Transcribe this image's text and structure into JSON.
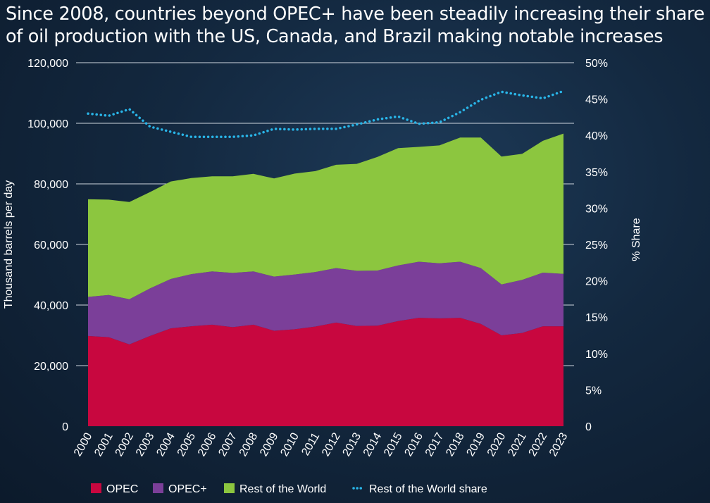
{
  "chart_data": {
    "type": "area",
    "title": "Since 2008, countries beyond OPEC+ have been steadily increasing their share of oil production with the US, Canada, and Brazil making notable increases",
    "ylabel": "Thousand barrels per day",
    "y2label": "% Share",
    "stacked": true,
    "grid": true,
    "legend_position": "bottom",
    "ylim": [
      0,
      120000
    ],
    "y2lim": [
      0,
      50
    ],
    "yticks": [
      "0",
      "20,000",
      "40,000",
      "60,000",
      "80,000",
      "100,000",
      "120,000"
    ],
    "y2ticks": [
      "0",
      "5%",
      "10%",
      "15%",
      "20%",
      "25%",
      "30%",
      "35%",
      "40%",
      "45%",
      "50%"
    ],
    "categories": [
      "2000",
      "2001",
      "2002",
      "2003",
      "2004",
      "2005",
      "2006",
      "2007",
      "2008",
      "2009",
      "2010",
      "2011",
      "2012",
      "2013",
      "2014",
      "2015",
      "2016",
      "2017",
      "2018",
      "2019",
      "2020",
      "2021",
      "2022",
      "2023"
    ],
    "series": [
      {
        "name": "OPEC",
        "color": "#c8073f",
        "values": [
          29800,
          29400,
          27000,
          29800,
          32300,
          33000,
          33500,
          32700,
          33500,
          31500,
          32000,
          32900,
          34200,
          33100,
          33200,
          34700,
          35800,
          35600,
          35800,
          33800,
          30000,
          30800,
          33000,
          33000
        ]
      },
      {
        "name": "OPEC+",
        "color": "#7b3f99",
        "values": [
          12900,
          13900,
          14900,
          15700,
          16300,
          17200,
          17600,
          17900,
          17600,
          17900,
          18100,
          18000,
          18000,
          18200,
          18200,
          18400,
          18500,
          18200,
          18500,
          18400,
          16800,
          17500,
          17700,
          17300
        ]
      },
      {
        "name": "Rest of the World",
        "color": "#8cc63f",
        "values": [
          32200,
          31500,
          32100,
          31800,
          32200,
          31700,
          31400,
          31900,
          32200,
          32400,
          33300,
          33300,
          34100,
          35300,
          37500,
          38700,
          37900,
          38900,
          41000,
          43100,
          42200,
          41600,
          43500,
          46300
        ]
      },
      {
        "name": "Rest of the World share",
        "color": "#29b5e8",
        "style": "dotted",
        "axis": "right",
        "values": [
          43.0,
          42.7,
          43.6,
          41.2,
          40.5,
          39.8,
          39.8,
          39.8,
          40.0,
          40.9,
          40.8,
          40.9,
          40.9,
          41.5,
          42.2,
          42.6,
          41.6,
          41.8,
          43.2,
          44.9,
          46.0,
          45.5,
          45.1,
          46.1
        ]
      }
    ]
  }
}
